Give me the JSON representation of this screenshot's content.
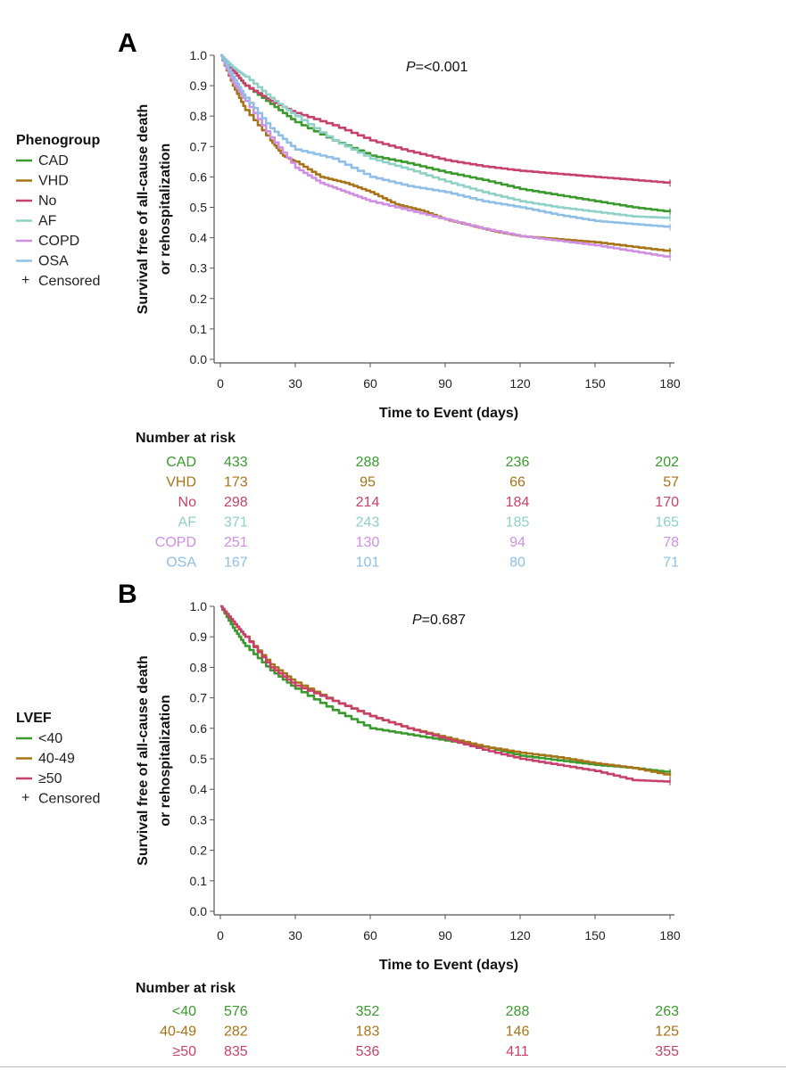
{
  "colors": {
    "green": "#3a9a2e",
    "olive": "#a87418",
    "crimson": "#c7426a",
    "teal": "#8fd0c7",
    "lilac": "#d08fe3",
    "sky": "#8fbfe6",
    "axis": "#555555"
  },
  "chart_data": [
    {
      "panel": "A",
      "type": "line",
      "ylabel_line1": "Survival free of all-cause death",
      "ylabel_line2": "or rehospitalization",
      "xlabel": "Time to Event (days)",
      "p_label": "P",
      "p_value": "=<0.001",
      "xlim": [
        0,
        180
      ],
      "ylim": [
        0,
        1.0
      ],
      "x_ticks": [
        "0",
        "30",
        "60",
        "90",
        "120",
        "150",
        "180"
      ],
      "y_ticks": [
        "0.0",
        "0.1",
        "0.2",
        "0.3",
        "0.4",
        "0.5",
        "0.6",
        "0.7",
        "0.8",
        "0.9",
        "1.0"
      ],
      "legend_title": "Phenogroup",
      "censored_label": "Censored",
      "series": [
        {
          "name": "CAD",
          "color_key": "green",
          "x": [
            0,
            5,
            10,
            20,
            30,
            45,
            60,
            75,
            90,
            105,
            120,
            135,
            150,
            165,
            180
          ],
          "y": [
            1.0,
            0.95,
            0.9,
            0.84,
            0.78,
            0.72,
            0.67,
            0.645,
            0.615,
            0.59,
            0.56,
            0.54,
            0.52,
            0.5,
            0.485
          ]
        },
        {
          "name": "VHD",
          "color_key": "olive",
          "x": [
            0,
            5,
            10,
            20,
            25,
            30,
            40,
            50,
            60,
            70,
            80,
            90,
            100,
            110,
            120,
            135,
            150,
            165,
            180
          ],
          "y": [
            1.0,
            0.9,
            0.82,
            0.72,
            0.67,
            0.65,
            0.6,
            0.58,
            0.55,
            0.51,
            0.49,
            0.46,
            0.44,
            0.42,
            0.405,
            0.395,
            0.385,
            0.37,
            0.355
          ]
        },
        {
          "name": "No",
          "color_key": "crimson",
          "x": [
            0,
            5,
            10,
            20,
            30,
            45,
            60,
            75,
            90,
            105,
            120,
            135,
            150,
            165,
            180
          ],
          "y": [
            1.0,
            0.95,
            0.9,
            0.85,
            0.81,
            0.77,
            0.72,
            0.685,
            0.655,
            0.635,
            0.62,
            0.61,
            0.6,
            0.59,
            0.58
          ]
        },
        {
          "name": "AF",
          "color_key": "teal",
          "x": [
            0,
            5,
            10,
            20,
            30,
            45,
            60,
            75,
            90,
            105,
            120,
            135,
            150,
            165,
            180
          ],
          "y": [
            1.0,
            0.96,
            0.93,
            0.86,
            0.8,
            0.72,
            0.66,
            0.625,
            0.585,
            0.55,
            0.52,
            0.5,
            0.485,
            0.47,
            0.465
          ]
        },
        {
          "name": "COPD",
          "color_key": "lilac",
          "x": [
            0,
            5,
            10,
            20,
            30,
            40,
            50,
            60,
            75,
            90,
            105,
            120,
            135,
            150,
            165,
            180
          ],
          "y": [
            1.0,
            0.91,
            0.85,
            0.73,
            0.63,
            0.58,
            0.55,
            0.52,
            0.49,
            0.46,
            0.43,
            0.405,
            0.39,
            0.375,
            0.355,
            0.335
          ]
        },
        {
          "name": "OSA",
          "color_key": "sky",
          "x": [
            0,
            5,
            10,
            20,
            30,
            45,
            60,
            75,
            90,
            105,
            120,
            135,
            150,
            165,
            180
          ],
          "y": [
            1.0,
            0.93,
            0.86,
            0.76,
            0.69,
            0.66,
            0.6,
            0.57,
            0.55,
            0.52,
            0.5,
            0.475,
            0.455,
            0.445,
            0.435
          ]
        }
      ],
      "risk_title": "Number at risk",
      "risk_rows": [
        {
          "label": "CAD",
          "color_key": "green",
          "values": [
            "433",
            "288",
            "236",
            "202"
          ]
        },
        {
          "label": "VHD",
          "color_key": "olive",
          "values": [
            "173",
            "95",
            "66",
            "57"
          ]
        },
        {
          "label": "No",
          "color_key": "crimson",
          "values": [
            "298",
            "214",
            "184",
            "170"
          ]
        },
        {
          "label": "AF",
          "color_key": "teal",
          "values": [
            "371",
            "243",
            "185",
            "165"
          ]
        },
        {
          "label": "COPD",
          "color_key": "lilac",
          "values": [
            "251",
            "130",
            "94",
            "78"
          ]
        },
        {
          "label": "OSA",
          "color_key": "sky",
          "values": [
            "167",
            "101",
            "80",
            "71"
          ]
        }
      ]
    },
    {
      "panel": "B",
      "type": "line",
      "ylabel_line1": "Survival free of all-cause death",
      "ylabel_line2": "or rehospitalization",
      "xlabel": "Time to Event (days)",
      "p_label": "P",
      "p_value": "=0.687",
      "xlim": [
        0,
        180
      ],
      "ylim": [
        0,
        1.0
      ],
      "x_ticks": [
        "0",
        "30",
        "60",
        "90",
        "120",
        "150",
        "180"
      ],
      "y_ticks": [
        "0.0",
        "0.1",
        "0.2",
        "0.3",
        "0.4",
        "0.5",
        "0.6",
        "0.7",
        "0.8",
        "0.9",
        "1.0"
      ],
      "legend_title": "LVEF",
      "censored_label": "Censored",
      "series": [
        {
          "name": "<40",
          "color_key": "green",
          "x": [
            0,
            5,
            10,
            20,
            30,
            45,
            60,
            75,
            90,
            105,
            120,
            135,
            150,
            165,
            180
          ],
          "y": [
            1.0,
            0.93,
            0.87,
            0.79,
            0.73,
            0.66,
            0.6,
            0.58,
            0.56,
            0.54,
            0.51,
            0.495,
            0.48,
            0.47,
            0.455
          ]
        },
        {
          "name": "40-49",
          "color_key": "olive",
          "x": [
            0,
            5,
            10,
            20,
            30,
            45,
            60,
            75,
            90,
            105,
            120,
            135,
            150,
            165,
            180
          ],
          "y": [
            1.0,
            0.95,
            0.9,
            0.81,
            0.75,
            0.69,
            0.64,
            0.6,
            0.57,
            0.54,
            0.52,
            0.505,
            0.485,
            0.47,
            0.445
          ]
        },
        {
          "name": "≥50",
          "color_key": "crimson",
          "x": [
            0,
            5,
            10,
            20,
            30,
            45,
            60,
            75,
            90,
            105,
            120,
            135,
            150,
            165,
            180
          ],
          "y": [
            1.0,
            0.95,
            0.9,
            0.8,
            0.74,
            0.69,
            0.64,
            0.6,
            0.565,
            0.53,
            0.5,
            0.48,
            0.46,
            0.43,
            0.425
          ]
        }
      ],
      "risk_title": "Number at risk",
      "risk_rows": [
        {
          "label": "<40",
          "color_key": "green",
          "values": [
            "576",
            "352",
            "288",
            "263"
          ]
        },
        {
          "label": "40-49",
          "color_key": "olive",
          "values": [
            "282",
            "183",
            "146",
            "125"
          ]
        },
        {
          "label": "≥50",
          "color_key": "crimson",
          "values": [
            "835",
            "536",
            "411",
            "355"
          ]
        }
      ]
    }
  ]
}
